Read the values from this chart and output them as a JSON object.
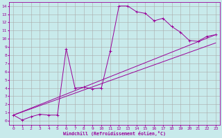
{
  "xlabel": "Windchill (Refroidissement éolien,°C)",
  "xlim": [
    -0.5,
    23.5
  ],
  "ylim": [
    -0.5,
    14.5
  ],
  "xticks": [
    0,
    1,
    2,
    3,
    4,
    5,
    6,
    7,
    8,
    9,
    10,
    11,
    12,
    13,
    14,
    15,
    16,
    17,
    18,
    19,
    20,
    21,
    22,
    23
  ],
  "yticks": [
    0,
    1,
    2,
    3,
    4,
    5,
    6,
    7,
    8,
    9,
    10,
    11,
    12,
    13,
    14
  ],
  "bg_color": "#c8eaeb",
  "line_color": "#990099",
  "grid_color": "#aaaaaa",
  "line1_x": [
    0,
    1,
    2,
    3,
    4,
    5,
    6,
    7,
    8,
    9,
    10,
    11,
    12,
    13,
    14,
    15,
    16,
    17,
    18,
    19,
    20,
    21,
    22,
    23
  ],
  "line1_y": [
    0.7,
    0.1,
    0.5,
    0.8,
    0.7,
    0.7,
    8.8,
    4.0,
    4.1,
    3.9,
    4.0,
    8.5,
    14.0,
    14.0,
    13.3,
    13.1,
    12.2,
    12.5,
    11.5,
    10.8,
    9.8,
    9.7,
    10.3,
    10.5
  ],
  "line2_x": [
    0,
    23
  ],
  "line2_y": [
    0.7,
    9.5
  ],
  "line3_x": [
    0,
    23
  ],
  "line3_y": [
    0.7,
    10.5
  ],
  "marker": "+"
}
